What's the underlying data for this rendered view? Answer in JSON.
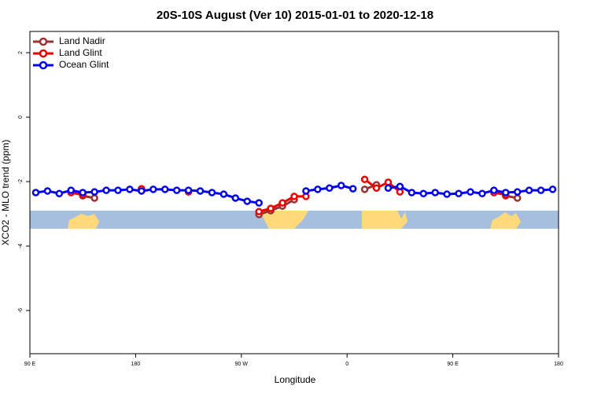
{
  "chart_data": {
    "type": "line",
    "title": "20S-10S August (Ver 10)   2015-01-01 to 2020-12-18",
    "x_label": "Longitude",
    "y_label": "XCO2 - MLO trend (ppm)",
    "x": [
      95,
      105,
      115,
      125,
      135,
      145,
      155,
      165,
      175,
      185,
      195,
      205,
      215,
      225,
      235,
      245,
      255,
      265,
      275,
      285,
      295,
      305,
      315,
      325,
      335,
      345,
      355,
      365,
      375,
      385,
      395,
      405,
      415,
      425,
      435,
      445,
      455,
      465,
      475,
      485,
      495,
      505,
      515,
      525,
      535
    ],
    "series": [
      {
        "name": "Land Nadir",
        "color": "#993333",
        "values": [
          null,
          null,
          null,
          null,
          -2.44,
          -2.51,
          null,
          null,
          null,
          null,
          null,
          null,
          null,
          null,
          null,
          null,
          null,
          null,
          null,
          -3.02,
          -2.9,
          -2.76,
          -2.56,
          null,
          null,
          null,
          null,
          null,
          -2.24,
          -2.1,
          null,
          null,
          null,
          null,
          null,
          null,
          null,
          null,
          null,
          null,
          -2.44,
          -2.51,
          null,
          null,
          null
        ]
      },
      {
        "name": "Land Glint",
        "color": "#ee0000",
        "values": [
          null,
          null,
          null,
          -2.34,
          -2.41,
          null,
          null,
          null,
          null,
          -2.22,
          null,
          null,
          null,
          -2.32,
          null,
          null,
          null,
          null,
          null,
          -2.93,
          -2.83,
          -2.66,
          -2.46,
          -2.46,
          null,
          null,
          null,
          null,
          -1.93,
          -2.2,
          -2.02,
          -2.32,
          null,
          null,
          null,
          null,
          null,
          null,
          null,
          -2.34,
          -2.41,
          null,
          null,
          null,
          null
        ]
      },
      {
        "name": "Ocean Glint",
        "color": "#0000ee",
        "values": [
          -2.34,
          -2.29,
          -2.37,
          -2.27,
          -2.34,
          -2.32,
          -2.27,
          -2.27,
          -2.24,
          -2.29,
          -2.24,
          -2.24,
          -2.27,
          -2.27,
          -2.29,
          -2.34,
          -2.39,
          -2.51,
          -2.61,
          -2.66,
          null,
          null,
          null,
          -2.29,
          -2.24,
          -2.2,
          -2.12,
          -2.22,
          null,
          null,
          -2.2,
          -2.15,
          -2.34,
          -2.37,
          -2.34,
          -2.39,
          -2.37,
          -2.32,
          -2.37,
          -2.27,
          -2.34,
          -2.32,
          -2.27,
          -2.27,
          -2.24
        ]
      }
    ],
    "xlim": [
      90,
      540
    ],
    "ylim": [
      -7.34,
      2.66
    ],
    "xticks": [
      {
        "value": 90,
        "label": "90 E"
      },
      180,
      {
        "value": 270,
        "label": "90 W"
      },
      {
        "value": 360,
        "label": "0"
      },
      {
        "value": 450,
        "label": "90 E"
      },
      {
        "value": 540,
        "label": "180"
      }
    ],
    "yticks": [
      -6,
      -4,
      -2,
      0,
      2
    ],
    "legend": "top-left"
  }
}
